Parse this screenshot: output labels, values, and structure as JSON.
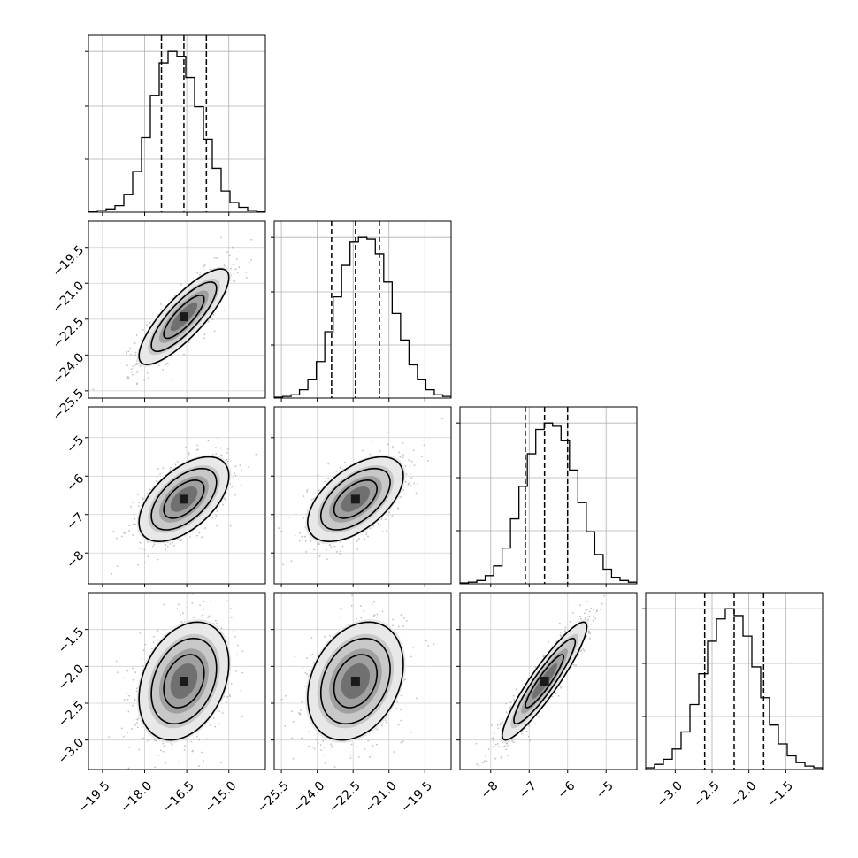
{
  "chart_data": {
    "type": "corner",
    "parameters": [
      {
        "index": 0,
        "range": [
          -20.0,
          -13.7
        ],
        "ticks": [
          -19.5,
          -18.0,
          -16.5,
          -15.0
        ],
        "tick_labels": [
          "−19.5",
          "−18.0",
          "−16.5",
          "−15.0"
        ],
        "quantiles": [
          -17.4,
          -16.6,
          -15.8
        ],
        "hist": [
          0.5,
          1,
          2,
          4,
          11,
          25,
          46,
          72,
          92,
          99,
          96,
          83,
          65,
          45,
          27,
          13,
          6,
          3,
          1,
          0.5
        ]
      },
      {
        "index": 1,
        "range": [
          -25.8,
          -18.4
        ],
        "ticks": [
          -25.5,
          -24.0,
          -22.5,
          -21.0,
          -19.5
        ],
        "tick_labels": [
          "−25.5",
          "−24.0",
          "−22.5",
          "−21.0",
          "−19.5"
        ],
        "quantiles": [
          -23.4,
          -22.4,
          -21.4
        ],
        "hist": [
          0.5,
          1,
          2,
          5,
          11,
          22,
          40,
          61,
          80,
          94,
          97,
          96,
          87,
          70,
          51,
          35,
          20,
          11,
          5,
          2,
          1
        ]
      },
      {
        "index": 2,
        "range": [
          -8.8,
          -4.2
        ],
        "ticks": [
          -8,
          -7,
          -6,
          -5
        ],
        "tick_labels": [
          "−8",
          "−7",
          "−6",
          "−5"
        ],
        "quantiles": [
          -7.1,
          -6.6,
          -6.0
        ],
        "hist": [
          0.5,
          1,
          2,
          5,
          11,
          22,
          40,
          60,
          80,
          95,
          99,
          97,
          88,
          70,
          50,
          32,
          18,
          9,
          4,
          2,
          1
        ]
      },
      {
        "index": 3,
        "range": [
          -3.4,
          -1.0
        ],
        "ticks": [
          -3.0,
          -2.5,
          -2.0,
          -1.5
        ],
        "tick_labels": [
          "−3.0",
          "−2.5",
          "−2.0",
          "−1.5"
        ],
        "quantiles": [
          -2.6,
          -2.2,
          -1.8
        ],
        "hist": [
          1,
          3,
          6,
          12,
          22,
          38,
          56,
          75,
          88,
          94,
          90,
          78,
          60,
          42,
          26,
          15,
          8,
          4,
          2,
          1
        ]
      }
    ],
    "y_tick_labels": {
      "1": [
        {
          "value": -19.5,
          "label": "−19.5"
        },
        {
          "value": -21.0,
          "label": "−21.0"
        },
        {
          "value": -22.5,
          "label": "−22.5"
        },
        {
          "value": -24.0,
          "label": "−24.0"
        },
        {
          "value": -25.5,
          "label": "−25.5"
        }
      ],
      "2": [
        {
          "value": -5,
          "label": "−5"
        },
        {
          "value": -6,
          "label": "−6"
        },
        {
          "value": -7,
          "label": "−7"
        },
        {
          "value": -8,
          "label": "−8"
        }
      ],
      "3": [
        {
          "value": -1.5,
          "label": "−1.5"
        },
        {
          "value": -2.0,
          "label": "−2.0"
        },
        {
          "value": -2.5,
          "label": "−2.5"
        },
        {
          "value": -3.0,
          "label": "−3.0"
        }
      ]
    },
    "correlations": {
      "1-0": 0.82,
      "2-0": 0.55,
      "2-1": 0.55,
      "3-0": 0.3,
      "3-1": 0.28,
      "3-2": 0.92
    },
    "grid": true,
    "contour_levels": 4,
    "colors": {
      "line": "#000000",
      "scatter": "#b0b0b0",
      "grid": "#b0b0b0"
    }
  }
}
